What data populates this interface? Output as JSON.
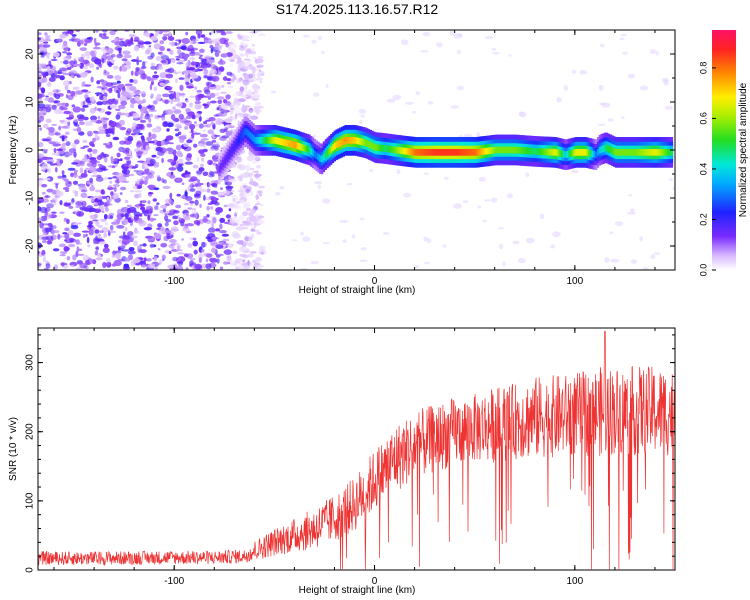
{
  "title": "S174.2025.113.16.57.R12",
  "colors": {
    "snr_line": "#ee3333",
    "background": "#ffffff",
    "axis": "#000000"
  },
  "chart_data": [
    {
      "type": "heatmap",
      "title": "S174.2025.113.16.57.R12",
      "xlabel": "Height of straight line (km)",
      "ylabel": "Frequency (Hz)",
      "xlim": [
        -168,
        150
      ],
      "ylim": [
        -25,
        25
      ],
      "x_ticks": [
        -100,
        0,
        100
      ],
      "y_ticks": [
        -20,
        -10,
        0,
        10,
        20
      ],
      "colorbar": {
        "label": "Normalized spectral amplitude",
        "range": [
          0,
          0.95
        ],
        "ticks": [
          0.0,
          0.2,
          0.4,
          0.6,
          0.8
        ],
        "colormap": "rainbow (purple to red)"
      },
      "noise_region_x": [
        -168,
        -60
      ],
      "ridge": {
        "x": [
          -78,
          -70,
          -65,
          -60,
          -50,
          -40,
          -33,
          -30,
          -27,
          -25,
          -20,
          -15,
          -10,
          -5,
          0,
          5,
          10,
          20,
          30,
          40,
          50,
          60,
          70,
          80,
          90,
          95,
          100,
          105,
          110,
          112,
          115,
          120,
          130,
          140,
          148
        ],
        "frequency": [
          -4,
          1,
          4,
          2,
          2,
          1,
          0,
          -1,
          -2,
          -1,
          1,
          2,
          2,
          1.5,
          0.5,
          0.3,
          0,
          -0.5,
          -0.5,
          -0.5,
          -0.5,
          0,
          0,
          -0.3,
          -0.5,
          -1,
          -0.5,
          -0.5,
          -1,
          0,
          0.5,
          -0.5,
          -0.5,
          -0.5,
          -0.5
        ],
        "amplitude": [
          0.15,
          0.2,
          0.3,
          0.35,
          0.7,
          0.8,
          0.5,
          0.3,
          0.4,
          0.5,
          0.75,
          0.8,
          0.75,
          0.6,
          0.6,
          0.5,
          0.6,
          0.85,
          0.9,
          0.9,
          0.85,
          0.6,
          0.6,
          0.5,
          0.7,
          0.4,
          0.7,
          0.7,
          0.3,
          0.4,
          0.5,
          0.6,
          0.6,
          0.7,
          0.5
        ]
      },
      "grid": false
    },
    {
      "type": "line",
      "xlabel": "Height of straight line (km)",
      "ylabel": "SNR (10 * v/v)",
      "xlim": [
        -168,
        150
      ],
      "ylim": [
        0,
        350
      ],
      "x_ticks": [
        -100,
        0,
        100
      ],
      "y_ticks": [
        0,
        100,
        200,
        300
      ],
      "envelope": {
        "x": [
          -168,
          -140,
          -100,
          -80,
          -65,
          -60,
          -50,
          -40,
          -30,
          -20,
          -10,
          0,
          10,
          20,
          30,
          40,
          50,
          60,
          70,
          80,
          90,
          100,
          110,
          115,
          120,
          130,
          140,
          150
        ],
        "mean": [
          17,
          17,
          18,
          18,
          20,
          28,
          40,
          50,
          60,
          75,
          95,
          130,
          160,
          180,
          190,
          200,
          205,
          210,
          215,
          220,
          222,
          225,
          228,
          230,
          230,
          230,
          230,
          228
        ],
        "spread": [
          10,
          10,
          10,
          10,
          10,
          15,
          20,
          25,
          30,
          35,
          40,
          45,
          50,
          50,
          50,
          50,
          50,
          55,
          55,
          60,
          60,
          60,
          65,
          65,
          65,
          65,
          65,
          65
        ]
      },
      "peak": {
        "x": 115,
        "y": 345
      },
      "grid": false
    }
  ]
}
